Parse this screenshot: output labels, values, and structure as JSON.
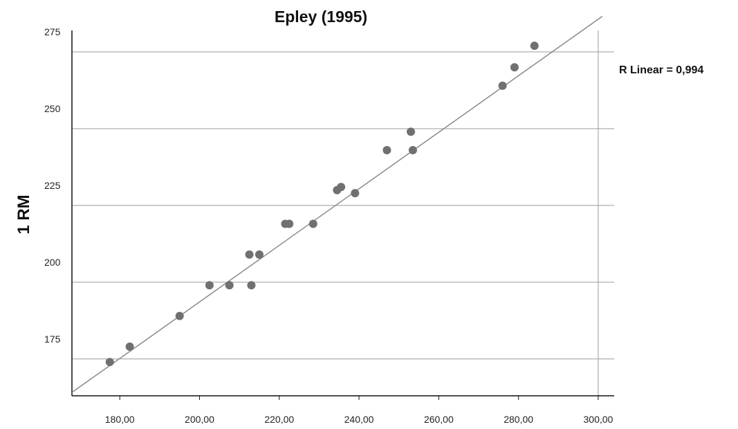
{
  "chart_data": {
    "type": "scatter",
    "title": "Epley (1995)",
    "xlabel": "",
    "ylabel": "1 RM",
    "xlim": [
      168,
      304
    ],
    "ylim": [
      163,
      282
    ],
    "x_ticks": [
      180,
      200,
      220,
      240,
      260,
      280,
      300
    ],
    "x_tick_labels": [
      "180,00",
      "200,00",
      "220,00",
      "240,00",
      "260,00",
      "280,00",
      "300,00"
    ],
    "y_ticks": [
      175,
      200,
      225,
      250,
      275
    ],
    "y_tick_labels": [
      "175",
      "200",
      "225",
      "250",
      "275"
    ],
    "grid": "horizontal",
    "annotation": "R  Linear = 0,994",
    "fit_line": {
      "x0": 168,
      "y0": 164.1,
      "x1": 301,
      "y1": 286.6
    },
    "marker_color": "#707070",
    "line_color": "#8a8a8a",
    "grid_color": "#9a9a9a",
    "points": [
      {
        "x": 177.5,
        "y": 174
      },
      {
        "x": 182.5,
        "y": 179
      },
      {
        "x": 195,
        "y": 189
      },
      {
        "x": 202.5,
        "y": 199
      },
      {
        "x": 207.5,
        "y": 199
      },
      {
        "x": 212.5,
        "y": 209
      },
      {
        "x": 213,
        "y": 199
      },
      {
        "x": 215,
        "y": 209
      },
      {
        "x": 221.5,
        "y": 219
      },
      {
        "x": 222.5,
        "y": 219
      },
      {
        "x": 228.5,
        "y": 219
      },
      {
        "x": 234.5,
        "y": 230
      },
      {
        "x": 235.5,
        "y": 231
      },
      {
        "x": 239,
        "y": 229
      },
      {
        "x": 247,
        "y": 243
      },
      {
        "x": 253,
        "y": 249
      },
      {
        "x": 253.5,
        "y": 243
      },
      {
        "x": 276,
        "y": 264
      },
      {
        "x": 279,
        "y": 270
      },
      {
        "x": 284,
        "y": 277
      }
    ]
  }
}
